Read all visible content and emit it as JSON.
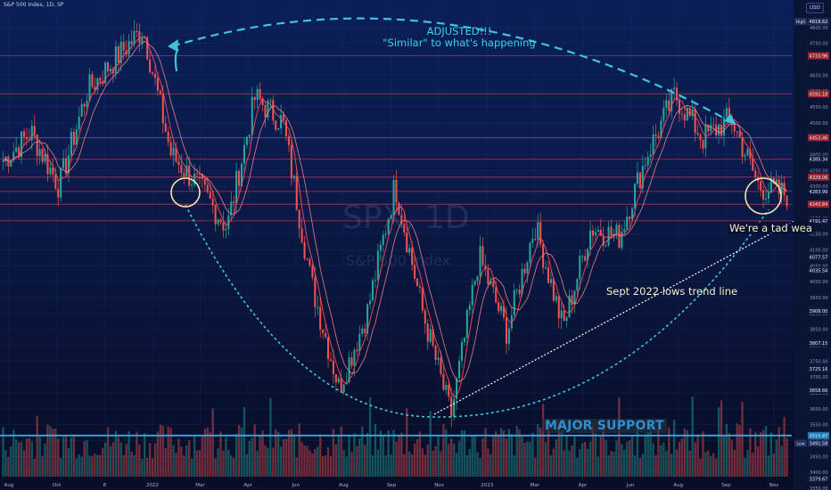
{
  "header": {
    "symbol_title": "S&P 500 Index, 1D, SP",
    "currency": "USD"
  },
  "watermark": {
    "ticker": "SPX, 1D",
    "name": "S&P 500 Index"
  },
  "annotations": {
    "adjusted_line1": "ADJUSTED!!!",
    "adjusted_line2": "\"Similar\" to what's happening",
    "weak": "We're a tad wea",
    "trend": "Sept 2022 lows trend line",
    "major_support": "MAJOR SUPPORT"
  },
  "colors": {
    "up_candle": "#26a69a",
    "down_candle": "#ef5350",
    "level_line": "#e0404f",
    "support_line": "#2fa2e0",
    "arc": "#3fc3e0",
    "trend_line": "#ffffff",
    "circle": "#f2e6a6",
    "ma_line": "#ff4d57"
  },
  "chart_data": {
    "type": "candlestick",
    "title": "S&P 500 Index, 1D, SP",
    "xlabel": "",
    "ylabel": "USD",
    "ylim": [
      3350,
      4850
    ],
    "x_ticks": [
      "Aug",
      "Oct",
      "8",
      "2022",
      "Mar",
      "Apr",
      "Jun",
      "Aug",
      "Sep",
      "Nov",
      "2023",
      "Mar",
      "Apr",
      "Jun",
      "Aug",
      "Sep",
      "Nov"
    ],
    "price_path": [
      [
        "Aug",
        4380
      ],
      [
        "Sep",
        4470
      ],
      [
        "Oct",
        4300
      ],
      [
        "8",
        4600
      ],
      [
        "Dec",
        4700
      ],
      [
        "2022",
        4796
      ],
      [
        "Jan",
        4400
      ],
      [
        "Feb",
        4300
      ],
      [
        "Mar",
        4170
      ],
      [
        "Mar",
        4580
      ],
      [
        "Apr",
        4500
      ],
      [
        "May",
        4000
      ],
      [
        "Jun",
        3666
      ],
      [
        "Jul",
        3900
      ],
      [
        "Aug",
        4305
      ],
      [
        "Sep",
        3900
      ],
      [
        "Oct",
        3577
      ],
      [
        "Nov",
        4080
      ],
      [
        "2023",
        3840
      ],
      [
        "Feb",
        4180
      ],
      [
        "Mar",
        3855
      ],
      [
        "Apr",
        4170
      ],
      [
        "May",
        4140
      ],
      [
        "Jun",
        4400
      ],
      [
        "Jul",
        4588
      ],
      [
        "Aug",
        4450
      ],
      [
        "Sep",
        4515
      ],
      [
        "Sep",
        4300
      ],
      [
        "Sep",
        4274
      ]
    ],
    "horizontal_levels": [
      4710.96,
      4591.18,
      4453.46,
      4385.34,
      4329.06,
      4283.99,
      4243.84,
      4191.47
    ],
    "major_support": 3515.87,
    "price_labels": [
      {
        "text": "High",
        "value": "4818.62",
        "type": "high"
      },
      {
        "text": "",
        "value": "4710.96",
        "type": "red"
      },
      {
        "text": "",
        "value": "4591.18",
        "type": "red"
      },
      {
        "text": "",
        "value": "4453.46",
        "type": "red"
      },
      {
        "text": "",
        "value": "4385.34",
        "type": "dark"
      },
      {
        "text": "",
        "value": "4329.06",
        "type": "red"
      },
      {
        "text": "",
        "value": "4283.99",
        "type": "dark"
      },
      {
        "text": "",
        "value": "4243.84",
        "type": "red"
      },
      {
        "text": "",
        "value": "4191.47",
        "type": "dark"
      },
      {
        "text": "",
        "value": "4077.57",
        "type": "dark"
      },
      {
        "text": "",
        "value": "4035.54",
        "type": "dark"
      },
      {
        "text": "",
        "value": "3908.00",
        "type": "dark"
      },
      {
        "text": "",
        "value": "3807.15",
        "type": "dark"
      },
      {
        "text": "",
        "value": "3725.16",
        "type": "dark"
      },
      {
        "text": "",
        "value": "3658.66",
        "type": "dark"
      },
      {
        "text": "",
        "value": "3515.87",
        "type": "blue"
      },
      {
        "text": "Low",
        "value": "3491.58",
        "type": "low"
      },
      {
        "text": "",
        "value": "3379.67",
        "type": "dark"
      }
    ],
    "axis_ticks": [
      "4800.00",
      "4750.00",
      "4650.00",
      "4600.00",
      "4550.00",
      "4500.00",
      "4450.00",
      "4400.00",
      "4350.00",
      "4300.00",
      "4200.00",
      "4150.00",
      "4100.00",
      "4050.00",
      "4000.00",
      "3950.00",
      "3900.00",
      "3850.00",
      "3800.00",
      "3750.00",
      "3700.00",
      "3650.00",
      "3600.00",
      "3550.00",
      "3500.00",
      "3450.00",
      "3400.00",
      "3350.00"
    ]
  }
}
